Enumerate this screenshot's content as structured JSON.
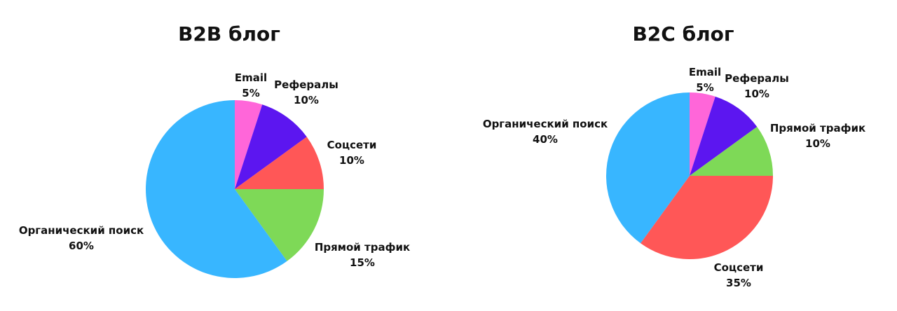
{
  "chart_data": [
    {
      "type": "pie",
      "title": "B2B блог",
      "slices": [
        {
          "label": "Email",
          "value": 5,
          "value_text": "5%",
          "color": "#ff66d9"
        },
        {
          "label": "Рефералы",
          "value": 10,
          "value_text": "10%",
          "color": "#5c16f0"
        },
        {
          "label": "Соцсети",
          "value": 10,
          "value_text": "10%",
          "color": "#ff5757"
        },
        {
          "label": "Прямой трафик",
          "value": 15,
          "value_text": "15%",
          "color": "#7ed957"
        },
        {
          "label": "Органический поиск",
          "value": 60,
          "value_text": "60%",
          "color": "#38b6ff"
        }
      ]
    },
    {
      "type": "pie",
      "title": "B2C блог",
      "slices": [
        {
          "label": "Email",
          "value": 5,
          "value_text": "5%",
          "color": "#ff66d9"
        },
        {
          "label": "Рефералы",
          "value": 10,
          "value_text": "10%",
          "color": "#5c16f0"
        },
        {
          "label": "Прямой трафик",
          "value": 10,
          "value_text": "10%",
          "color": "#7ed957"
        },
        {
          "label": "Соцсети",
          "value": 35,
          "value_text": "35%",
          "color": "#ff5757"
        },
        {
          "label": "Органический поиск",
          "value": 40,
          "value_text": "40%",
          "color": "#38b6ff"
        }
      ]
    }
  ]
}
